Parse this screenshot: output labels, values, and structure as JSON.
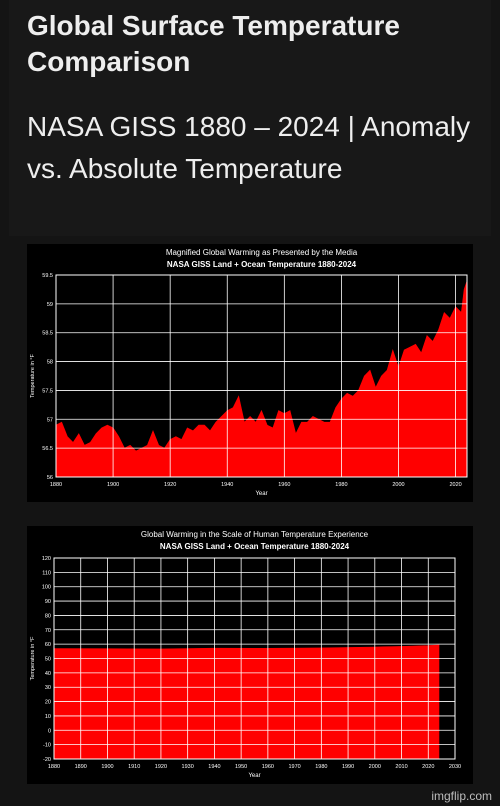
{
  "page": {
    "title": "Global Surface Temperature Comparison",
    "subtitle": "NASA GISS 1880 – 2024 | Anomaly vs. Absolute Temperature",
    "credit": "imgflip.com"
  },
  "colors": {
    "fill": "#ff0000",
    "background": "#000000",
    "grid": "#ffffff"
  },
  "chart_data": [
    {
      "type": "area",
      "title": "Magnified Global Warming as Presented by the Media",
      "subtitle": "NASA GISS Land + Ocean Temperature 1880-2024",
      "xlabel": "Year",
      "ylabel": "Temperature in °F",
      "xlim": [
        1880,
        2024
      ],
      "ylim": [
        56,
        59.5
      ],
      "xticks": [
        "1880",
        "1900",
        "1920",
        "1940",
        "1960",
        "1980",
        "2000",
        "2020"
      ],
      "yticks": [
        "56",
        "56.5",
        "57",
        "57.5",
        "58",
        "58.5",
        "59",
        "59.5"
      ],
      "grid": true,
      "x": [
        1880,
        1882,
        1884,
        1886,
        1888,
        1890,
        1892,
        1894,
        1896,
        1898,
        1900,
        1902,
        1904,
        1906,
        1908,
        1910,
        1912,
        1914,
        1916,
        1918,
        1920,
        1922,
        1924,
        1926,
        1928,
        1930,
        1932,
        1934,
        1936,
        1938,
        1940,
        1942,
        1944,
        1946,
        1948,
        1950,
        1952,
        1954,
        1956,
        1958,
        1960,
        1962,
        1964,
        1966,
        1968,
        1970,
        1972,
        1974,
        1976,
        1978,
        1980,
        1982,
        1984,
        1986,
        1988,
        1990,
        1992,
        1994,
        1996,
        1998,
        2000,
        2002,
        2004,
        2006,
        2008,
        2010,
        2012,
        2014,
        2016,
        2018,
        2020,
        2022,
        2023,
        2024
      ],
      "y": [
        56.9,
        56.95,
        56.7,
        56.6,
        56.75,
        56.55,
        56.6,
        56.75,
        56.85,
        56.9,
        56.85,
        56.7,
        56.5,
        56.55,
        56.45,
        56.5,
        56.55,
        56.8,
        56.55,
        56.5,
        56.65,
        56.7,
        56.65,
        56.85,
        56.8,
        56.9,
        56.9,
        56.8,
        56.95,
        57.05,
        57.15,
        57.2,
        57.4,
        56.95,
        57.05,
        56.95,
        57.15,
        56.9,
        56.85,
        57.15,
        57.1,
        57.15,
        56.75,
        56.95,
        56.95,
        57.05,
        57.0,
        56.95,
        56.95,
        57.2,
        57.35,
        57.45,
        57.4,
        57.5,
        57.75,
        57.85,
        57.55,
        57.75,
        57.85,
        58.2,
        57.9,
        58.2,
        58.25,
        58.3,
        58.15,
        58.45,
        58.35,
        58.55,
        58.85,
        58.75,
        58.95,
        58.85,
        59.25,
        59.4
      ]
    },
    {
      "type": "area",
      "title": "Global Warming in the Scale of Human Temperature Experience",
      "subtitle": "NASA GISS Land + Ocean Temperature 1880-2024",
      "xlabel": "Year",
      "ylabel": "Temperature in °F",
      "xlim": [
        1880,
        2030
      ],
      "ylim": [
        -20,
        120
      ],
      "xticks": [
        "1880",
        "1890",
        "1900",
        "1910",
        "1920",
        "1930",
        "1940",
        "1950",
        "1960",
        "1970",
        "1980",
        "1990",
        "2000",
        "2010",
        "2020",
        "2030"
      ],
      "yticks": [
        "-20",
        "-10",
        "0",
        "10",
        "20",
        "30",
        "40",
        "50",
        "60",
        "70",
        "80",
        "90",
        "100",
        "110",
        "120"
      ],
      "grid": true,
      "x": [
        1880,
        1900,
        1920,
        1940,
        1960,
        1980,
        2000,
        2010,
        2020,
        2024
      ],
      "y": [
        56.9,
        56.8,
        56.7,
        57.2,
        57.1,
        57.4,
        58.0,
        58.4,
        59.0,
        59.4
      ]
    }
  ]
}
